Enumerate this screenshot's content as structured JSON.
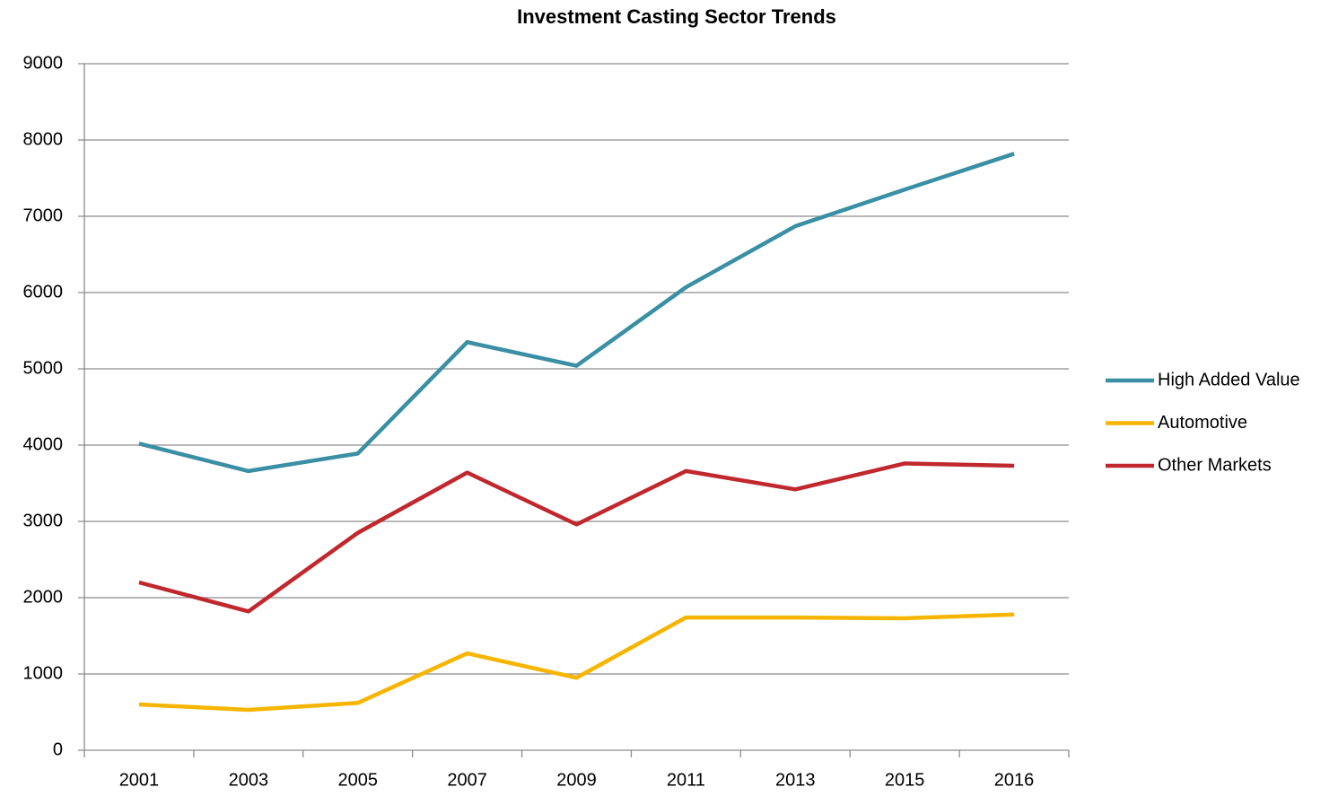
{
  "chart_data": {
    "type": "line",
    "title": "Investment Casting Sector Trends",
    "categories": [
      "2001",
      "2003",
      "2005",
      "2007",
      "2009",
      "2011",
      "2013",
      "2015",
      "2016"
    ],
    "series": [
      {
        "name": "High Added Value",
        "color": "#3a8fa5",
        "values": [
          4020,
          3660,
          3890,
          5350,
          5040,
          6070,
          6870,
          7350,
          7820
        ]
      },
      {
        "name": "Automotive",
        "color": "#f7b500",
        "values": [
          600,
          530,
          620,
          1270,
          950,
          1740,
          1740,
          1730,
          1780
        ]
      },
      {
        "name": "Other Markets",
        "color": "#c0282d",
        "values": [
          2200,
          1820,
          2850,
          3640,
          2960,
          3660,
          3420,
          3760,
          3730
        ]
      }
    ],
    "ylim": [
      0,
      9000
    ],
    "yticks": [
      0,
      1000,
      2000,
      3000,
      4000,
      5000,
      6000,
      7000,
      8000,
      9000
    ],
    "grid": true,
    "legend": "right"
  }
}
